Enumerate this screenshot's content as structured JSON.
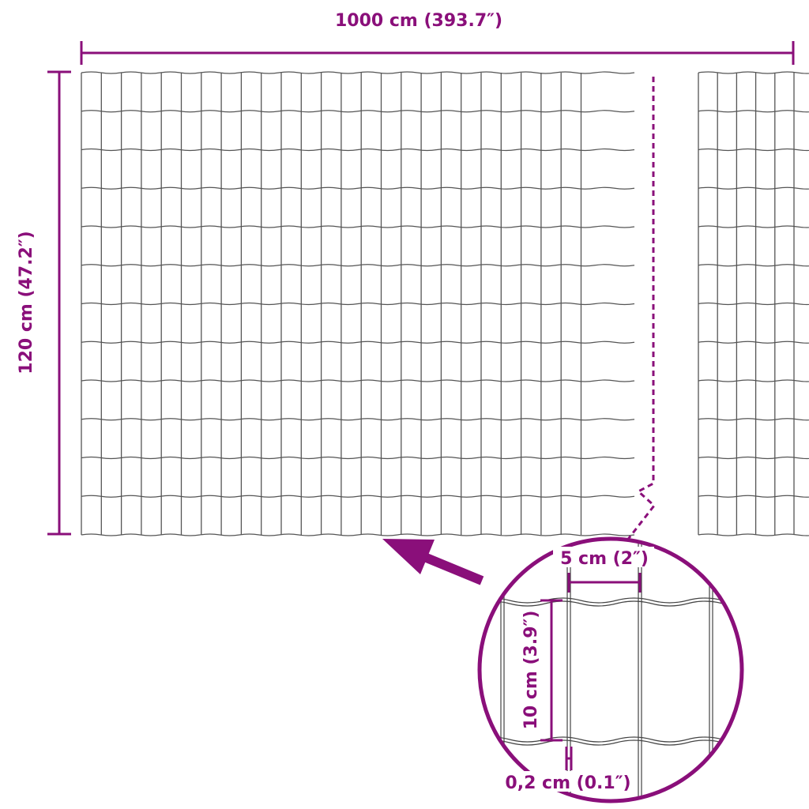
{
  "colors": {
    "accent": "#8a0f7a",
    "mesh": "#555555"
  },
  "dimensions": {
    "width_label": "1000 cm (393.7″)",
    "height_label": "120 cm (47.2″)",
    "mesh_width_label": "5 cm (2″)",
    "mesh_height_label": "10 cm (3.9″)",
    "wire_thickness_label": "0,2 cm (0.1″)"
  }
}
